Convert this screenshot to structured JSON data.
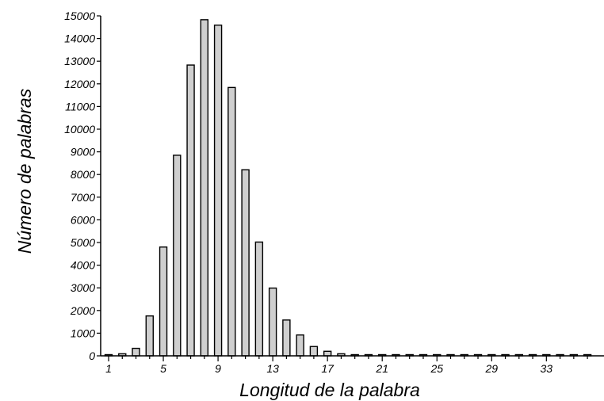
{
  "chart_data": {
    "type": "bar",
    "title": "",
    "xlabel": "Longitud de la palabra",
    "ylabel": "Número de palabras",
    "categories": [
      1,
      2,
      3,
      4,
      5,
      6,
      7,
      8,
      9,
      10,
      11,
      12,
      13,
      14,
      15,
      16,
      17,
      18,
      19,
      20,
      21,
      22,
      23,
      24,
      25,
      26,
      27,
      28,
      29,
      30,
      31,
      32,
      33,
      34,
      35,
      36
    ],
    "values": [
      40,
      90,
      330,
      1760,
      4800,
      8850,
      12830,
      14830,
      14590,
      11840,
      8210,
      5020,
      2990,
      1580,
      920,
      410,
      200,
      90,
      40,
      15,
      8,
      5,
      3,
      2,
      2,
      1,
      1,
      1,
      1,
      1,
      1,
      1,
      1,
      1,
      1,
      1
    ],
    "ylim": [
      0,
      15000
    ],
    "yticks": [
      0,
      1000,
      2000,
      3000,
      4000,
      5000,
      6000,
      7000,
      8000,
      9000,
      10000,
      11000,
      12000,
      13000,
      14000,
      15000
    ],
    "xtick_labels": [
      1,
      5,
      9,
      13,
      17,
      21,
      25,
      29,
      33
    ],
    "grid": false,
    "colors": {
      "bar_fill": "#cfcfcf",
      "bar_stroke": "#000000"
    }
  }
}
